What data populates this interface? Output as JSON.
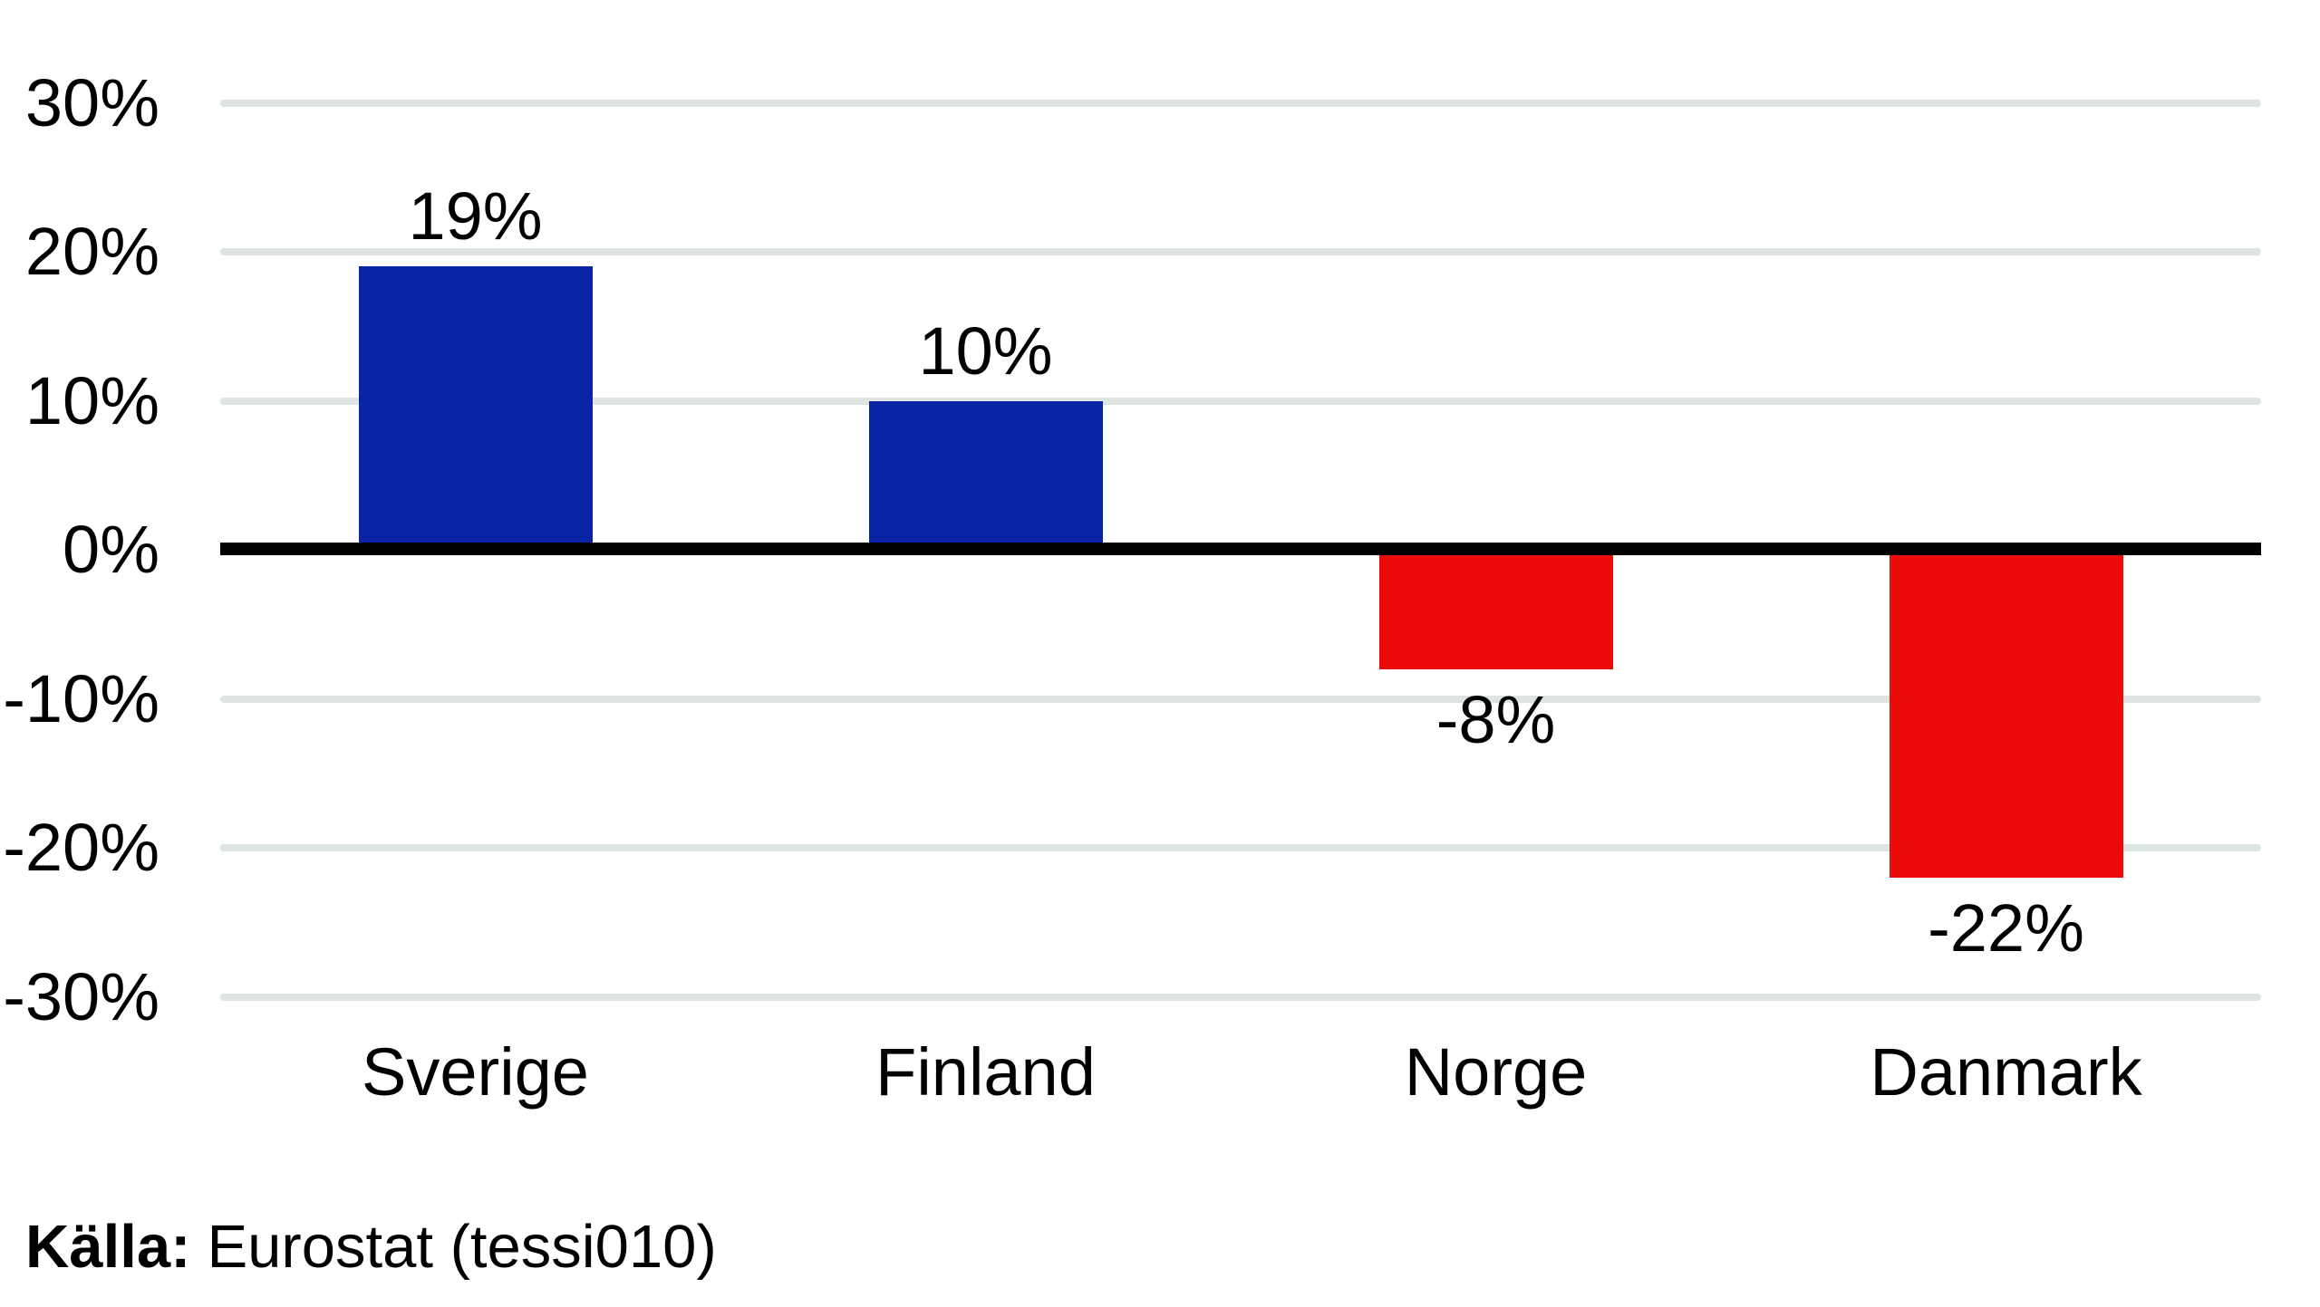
{
  "chart_data": {
    "type": "bar",
    "categories": [
      "Sverige",
      "Finland",
      "Norge",
      "Danmark"
    ],
    "values": [
      19,
      10,
      -8,
      -22
    ],
    "value_labels": [
      "19%",
      "10%",
      "-8%",
      "-22%"
    ],
    "bar_colors": [
      "#0823A3",
      "#0823A3",
      "#EB0B0B",
      "#EB0B0B"
    ],
    "positive_color": "#0823A3",
    "negative_color": "#EB0B0B",
    "y_ticks": [
      30,
      20,
      10,
      0,
      -10,
      -20,
      -30
    ],
    "y_tick_labels": [
      "30%",
      "20%",
      "10%",
      "0%",
      "-10%",
      "-20%",
      "-30%"
    ],
    "ylim": [
      -30,
      30
    ],
    "grid": "horizontal-gridlines-on",
    "zero_line": true,
    "legend": "none",
    "title": "",
    "xlabel": "",
    "ylabel": ""
  },
  "source": {
    "label": "Källa:",
    "text": "Eurostat (tessi010)"
  },
  "colors": {
    "background": "#FFFFFF",
    "grid": "#DEE4E2",
    "zero_line": "#000000",
    "text": "#000000"
  }
}
